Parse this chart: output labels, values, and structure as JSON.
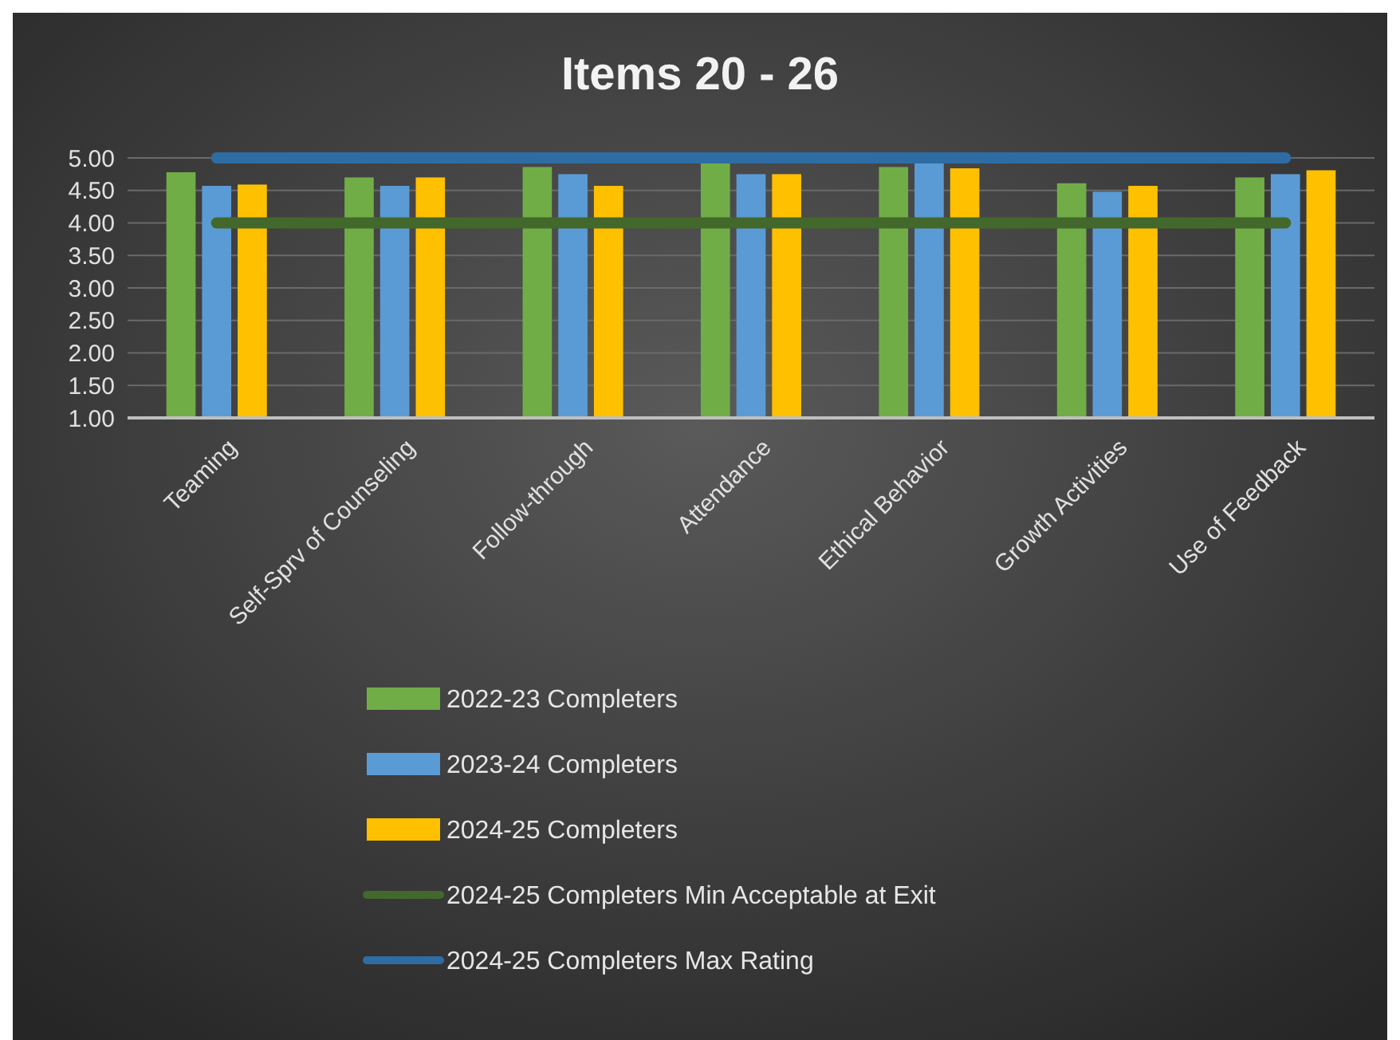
{
  "chart_data": {
    "type": "bar",
    "title": "Items 20 - 26",
    "categories": [
      "Teaming",
      "Self-Sprv of Counseling",
      "Follow-through",
      "Attendance",
      "Ethical Behavior",
      "Growth Activities",
      "Use of Feedback"
    ],
    "series": [
      {
        "name": "2022-23 Completers",
        "color": "#70ad47",
        "values": [
          4.78,
          4.7,
          4.86,
          4.93,
          4.86,
          4.61,
          4.7
        ]
      },
      {
        "name": "2023-24 Completers",
        "color": "#5b9bd5",
        "values": [
          4.57,
          4.57,
          4.75,
          4.75,
          4.96,
          4.48,
          4.75
        ]
      },
      {
        "name": "2024-25 Completers",
        "color": "#ffc000",
        "values": [
          4.59,
          4.7,
          4.57,
          4.75,
          4.84,
          4.57,
          4.81
        ]
      },
      {
        "name": "2024-25 Completers Min Acceptable at Exit",
        "type": "line",
        "color": "#43682b",
        "values": [
          4,
          4,
          4,
          4,
          4,
          4,
          4
        ]
      },
      {
        "name": "2024-25 Completers Max Rating",
        "type": "line",
        "color": "#2e6da4",
        "values": [
          5,
          5,
          5,
          5,
          5,
          5,
          5
        ]
      }
    ],
    "ylim": [
      1,
      5
    ],
    "yticks": [
      {
        "value": 1,
        "label": "1.00"
      },
      {
        "value": 1.5,
        "label": "1.50"
      },
      {
        "value": 2,
        "label": "2.00"
      },
      {
        "value": 2.5,
        "label": "2.50"
      },
      {
        "value": 3,
        "label": "3.00"
      },
      {
        "value": 3.5,
        "label": "3.50"
      },
      {
        "value": 4,
        "label": "4.00"
      },
      {
        "value": 4.5,
        "label": "4.50"
      },
      {
        "value": 5,
        "label": "5.00"
      }
    ],
    "grid": "y",
    "legend": "bottom",
    "marker": "none",
    "line_style": "solid"
  }
}
